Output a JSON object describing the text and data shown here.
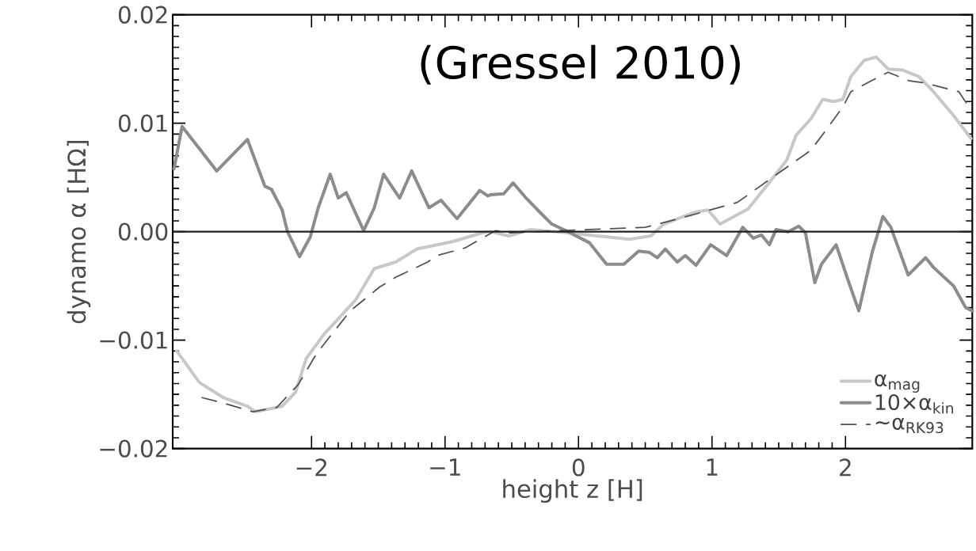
{
  "chart_data": {
    "type": "line",
    "xlabel": "height z [H]",
    "ylabel": "dynamo α [HΩ]",
    "annotations": [
      "(Gressel 2010)"
    ],
    "xlim": [
      -3.04,
      2.95
    ],
    "ylim": [
      -0.02,
      0.02
    ],
    "xticks": [
      {
        "value": -2,
        "label": "−2"
      },
      {
        "value": -1,
        "label": "−1"
      },
      0,
      1,
      2
    ],
    "yticks": [
      {
        "value": -0.02,
        "label": "−0.02"
      },
      {
        "value": -0.01,
        "label": "−0.01"
      },
      {
        "value": 0,
        "label": "0.00"
      },
      {
        "value": 0.01,
        "label": "0.01"
      },
      {
        "value": 0.02,
        "label": "0.02"
      }
    ],
    "legend": "bottom right",
    "ref_lines": [
      {
        "axis": "y",
        "value": 0,
        "color": "#202020"
      }
    ],
    "series": [
      {
        "name": "α$_{mag}$",
        "color": "#c8c8c8",
        "line_style": "solid",
        "x": [
          -3.01,
          -2.84,
          -2.66,
          -2.48,
          -2.42,
          -2.22,
          -2.12,
          -2.04,
          -1.91,
          -1.67,
          -1.53,
          -1.37,
          -1.21,
          -0.94,
          -0.72,
          -0.66,
          -0.52,
          -0.36,
          -0.08,
          0.15,
          0.38,
          0.54,
          0.64,
          0.87,
          0.97,
          1.06,
          1.27,
          1.42,
          1.56,
          1.63,
          1.74,
          1.83,
          1.91,
          1.98,
          2.04,
          2.14,
          2.23,
          2.32,
          2.43,
          2.55,
          2.66,
          2.81,
          2.94
        ],
        "values": [
          -0.011,
          -0.0139,
          -0.0153,
          -0.0161,
          -0.0166,
          -0.0161,
          -0.0148,
          -0.0117,
          -0.0095,
          -0.0063,
          -0.0034,
          -0.0028,
          -0.0016,
          -0.0009,
          -0.0001,
          0.0,
          -0.0004,
          0.0002,
          -0.0001,
          -0.0004,
          -0.0007,
          -0.0004,
          0.0007,
          0.0018,
          0.002,
          0.0007,
          0.0021,
          0.0044,
          0.0066,
          0.0089,
          0.0104,
          0.0122,
          0.012,
          0.0122,
          0.0143,
          0.0158,
          0.0161,
          0.015,
          0.0149,
          0.0143,
          0.0129,
          0.0107,
          0.0086
        ]
      },
      {
        "name": "10×α$_{kin}$",
        "color": "#8c8c8c",
        "line_style": "solid",
        "x": [
          -3.03,
          -2.97,
          -2.71,
          -2.48,
          -2.35,
          -2.3,
          -2.22,
          -2.18,
          -2.09,
          -2.01,
          -1.95,
          -1.86,
          -1.8,
          -1.74,
          -1.61,
          -1.53,
          -1.46,
          -1.34,
          -1.25,
          -1.12,
          -1.03,
          -0.91,
          -0.74,
          -0.68,
          -0.66,
          -0.56,
          -0.49,
          -0.4,
          -0.29,
          -0.2,
          -0.08,
          0.08,
          0.21,
          0.34,
          0.45,
          0.53,
          0.59,
          0.65,
          0.74,
          0.8,
          0.88,
          0.99,
          1.11,
          1.23,
          1.31,
          1.37,
          1.43,
          1.48,
          1.57,
          1.65,
          1.7,
          1.77,
          1.82,
          1.93,
          2.02,
          2.1,
          2.2,
          2.28,
          2.34,
          2.47,
          2.6,
          2.66,
          2.81,
          2.9,
          2.95
        ],
        "values": [
          0.0058,
          0.0097,
          0.0056,
          0.0085,
          0.0042,
          0.0039,
          0.002,
          0.0,
          -0.0023,
          -0.0005,
          0.0022,
          0.0053,
          0.0031,
          0.0036,
          0.0001,
          0.0022,
          0.0053,
          0.0031,
          0.0056,
          0.0022,
          0.0029,
          0.0012,
          0.0038,
          0.0033,
          0.0034,
          0.0035,
          0.0045,
          0.0032,
          0.0018,
          0.0007,
          0.0,
          -0.001,
          -0.003,
          -0.003,
          -0.0018,
          -0.0019,
          -0.0024,
          -0.0016,
          -0.0028,
          -0.0022,
          -0.0031,
          -0.0012,
          -0.0022,
          0.0004,
          -0.0006,
          -0.0003,
          -0.0012,
          0.0002,
          0.0,
          0.0005,
          -0.0001,
          -0.0047,
          -0.003,
          -0.0012,
          -0.0045,
          -0.0073,
          -0.0019,
          0.0014,
          0.0004,
          -0.004,
          -0.0024,
          -0.0033,
          -0.005,
          -0.007,
          -0.0073
        ]
      },
      {
        "name": "~α$_{RK93}$",
        "color": "#505050",
        "line_style": "dashed",
        "x": [
          -2.82,
          -2.66,
          -2.44,
          -2.26,
          -2.1,
          -1.96,
          -1.71,
          -1.49,
          -1.37,
          -1.13,
          -1.06,
          -0.85,
          -0.62,
          -0.52,
          0.5,
          0.84,
          1.19,
          1.51,
          1.74,
          1.82,
          1.98,
          2.04,
          2.16,
          2.32,
          2.48,
          2.6,
          2.85,
          2.94
        ],
        "values": [
          -0.0153,
          -0.0158,
          -0.0166,
          -0.0162,
          -0.0141,
          -0.0112,
          -0.0073,
          -0.0051,
          -0.0042,
          -0.0028,
          -0.0022,
          -0.0015,
          0.0001,
          -0.0001,
          0.0004,
          0.0015,
          0.0027,
          0.0055,
          0.0075,
          0.0088,
          0.0115,
          0.0129,
          0.0137,
          0.0147,
          0.0139,
          0.0137,
          0.0129,
          0.0112
        ]
      }
    ]
  }
}
